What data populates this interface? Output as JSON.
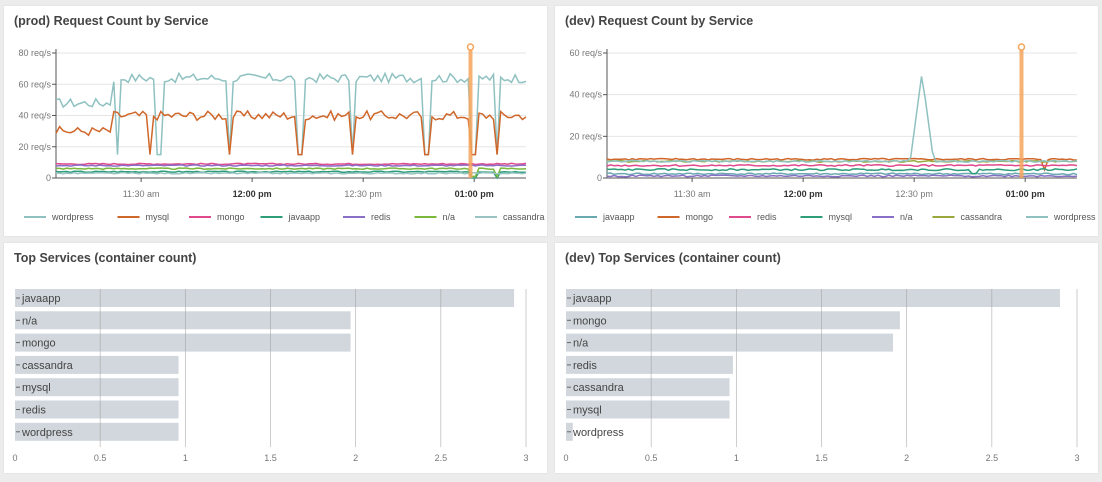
{
  "panels": [
    {
      "id": "prod-request",
      "title": "(prod) Request Count by Service",
      "box": "p1"
    },
    {
      "id": "dev-request",
      "title": "(dev) Request Count by Service",
      "box": "p2"
    },
    {
      "id": "prod-top",
      "title": "Top Services (container count)",
      "box": "p3"
    },
    {
      "id": "dev-top",
      "title": "(dev) Top Services (container count)",
      "box": "p4"
    }
  ],
  "chart_data": [
    {
      "type": "line",
      "title": "(prod) Request Count by Service",
      "y_unit": "req/s",
      "ylim": [
        0,
        80
      ],
      "yticks": [
        "0",
        "20 req/s",
        "40 req/s",
        "60 req/s",
        "80 req/s"
      ],
      "xlim": [
        "11:07",
        "13:14"
      ],
      "xticks": [
        {
          "time": "11:30",
          "label": "11:30 am",
          "bold": false
        },
        {
          "time": "12:00",
          "label": "12:00 pm",
          "bold": true
        },
        {
          "time": "12:30",
          "label": "12:30 pm",
          "bold": false
        },
        {
          "time": "13:00",
          "label": "01:00 pm",
          "bold": true
        }
      ],
      "marker_time": "12:59",
      "marker_color": "#f5a55c",
      "series": [
        {
          "name": "wordpress",
          "color": "#8fc1c1",
          "base": 48,
          "hi": 64,
          "dips": [
            0.13,
            0.22,
            0.37,
            0.52,
            0.63,
            0.79,
            0.89,
            0.94
          ],
          "dip_to": 15
        },
        {
          "name": "mysql",
          "color": "#d0672a",
          "base": 30,
          "hi": 40,
          "dips": [
            0.2,
            0.37,
            0.52,
            0.63,
            0.79,
            0.89,
            0.94
          ],
          "dip_to": 15
        },
        {
          "name": "mongo",
          "color": "#e04a8c",
          "base": 9,
          "hi": 9,
          "dips": [],
          "dip_to": 8
        },
        {
          "name": "javaapp",
          "color": "#2e9e7a",
          "base": 4,
          "hi": 4,
          "dips": [
            0.89,
            0.94
          ],
          "dip_to": 0
        },
        {
          "name": "redis",
          "color": "#8a6fc7",
          "base": 8,
          "hi": 8,
          "dips": [],
          "dip_to": 7
        },
        {
          "name": "n/a",
          "color": "#7bb83c",
          "base": 6,
          "hi": 6,
          "dips": [
            0.89,
            0.94
          ],
          "dip_to": 1
        },
        {
          "name": "cassandra",
          "color": "#9ac4c4",
          "base": 3,
          "hi": 3,
          "dips": [],
          "dip_to": 2
        }
      ]
    },
    {
      "type": "line",
      "title": "(dev) Request Count by Service",
      "y_unit": "req/s",
      "ylim": [
        0,
        60
      ],
      "yticks": [
        "0",
        "20 req/s",
        "40 req/s",
        "60 req/s"
      ],
      "xlim": [
        "11:07",
        "13:14"
      ],
      "xticks": [
        {
          "time": "11:30",
          "label": "11:30 am",
          "bold": false
        },
        {
          "time": "12:00",
          "label": "12:00 pm",
          "bold": true
        },
        {
          "time": "12:30",
          "label": "12:30 pm",
          "bold": false
        },
        {
          "time": "13:00",
          "label": "01:00 pm",
          "bold": true
        }
      ],
      "marker_time": "12:59",
      "marker_color": "#f5a55c",
      "series": [
        {
          "name": "javaapp",
          "color": "#6aa9b0",
          "base": 2,
          "hi": 2,
          "dips": [],
          "dip_to": 2
        },
        {
          "name": "mongo",
          "color": "#d0672a",
          "base": 9,
          "hi": 9,
          "dips": [
            0.93
          ],
          "dip_to": 4
        },
        {
          "name": "redis",
          "color": "#e04a8c",
          "base": 6,
          "hi": 6,
          "dips": [],
          "dip_to": 5
        },
        {
          "name": "mysql",
          "color": "#2e9e7a",
          "base": 4,
          "hi": 4,
          "dips": [
            0.78
          ],
          "dip_to": 2
        },
        {
          "name": "n/a",
          "color": "#8a6fc7",
          "base": 1,
          "hi": 1,
          "dips": [],
          "dip_to": 0
        },
        {
          "name": "cassandra",
          "color": "#9aa83c",
          "base": 8,
          "hi": 8,
          "dips": [],
          "dip_to": 7
        },
        {
          "name": "wordpress",
          "color": "#8fc1c1",
          "base": 8,
          "hi": 8,
          "dips": [],
          "dip_to": 8,
          "spike": {
            "at": 0.67,
            "value": 50
          }
        }
      ]
    },
    {
      "type": "bar",
      "title": "Top Services (container count)",
      "xlim": [
        0,
        3
      ],
      "xticks": [
        "0",
        "0.5",
        "1",
        "1.5",
        "2",
        "2.5",
        "3"
      ],
      "categories": [
        "javaapp",
        "n/a",
        "mongo",
        "cassandra",
        "mysql",
        "redis",
        "wordpress"
      ],
      "values": [
        2.93,
        1.97,
        1.97,
        0.96,
        0.96,
        0.96,
        0.96
      ],
      "bar_color": "#d1d7dc"
    },
    {
      "type": "bar",
      "title": "(dev) Top Services (container count)",
      "xlim": [
        0,
        3
      ],
      "xticks": [
        "0",
        "0.5",
        "1",
        "1.5",
        "2",
        "2.5",
        "3"
      ],
      "categories": [
        "javaapp",
        "mongo",
        "n/a",
        "redis",
        "cassandra",
        "mysql",
        "wordpress"
      ],
      "values": [
        2.9,
        1.96,
        1.92,
        0.98,
        0.96,
        0.96,
        0.04
      ],
      "bar_color": "#d1d7dc"
    }
  ]
}
